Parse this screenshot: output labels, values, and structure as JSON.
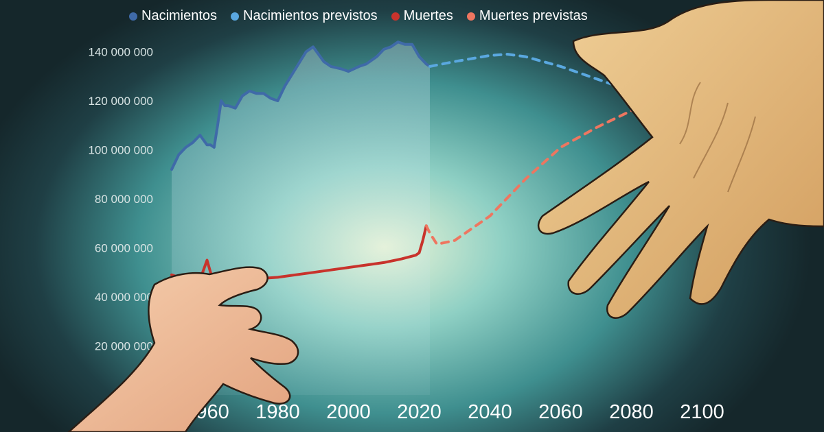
{
  "chart_data": {
    "type": "line",
    "title": "",
    "xlabel": "",
    "ylabel": "",
    "xlim": [
      1950,
      2100
    ],
    "ylim": [
      0,
      150000000
    ],
    "y_ticks": [
      {
        "value": 20000000,
        "label": "20 000 000"
      },
      {
        "value": 40000000,
        "label": "40 000 000"
      },
      {
        "value": 60000000,
        "label": "60 000 000"
      },
      {
        "value": 80000000,
        "label": "80 000 000"
      },
      {
        "value": 100000000,
        "label": "100 000 000"
      },
      {
        "value": 120000000,
        "label": "120 000 000"
      },
      {
        "value": 140000000,
        "label": "140 000 000"
      }
    ],
    "x_ticks": [
      {
        "value": 1960,
        "label": "1960"
      },
      {
        "value": 1980,
        "label": "1980"
      },
      {
        "value": 2000,
        "label": "2000"
      },
      {
        "value": 2020,
        "label": "2020"
      },
      {
        "value": 2040,
        "label": "2040"
      },
      {
        "value": 2060,
        "label": "2060"
      },
      {
        "value": 2080,
        "label": "2080"
      },
      {
        "value": 2100,
        "label": "2100"
      }
    ],
    "legend_position": "top",
    "grid": false,
    "series": [
      {
        "name": "Nacimientos",
        "color": "#3f6aa8",
        "style": "solid",
        "fill_below": true,
        "x": [
          1950,
          1952,
          1954,
          1956,
          1958,
          1960,
          1961,
          1962,
          1963,
          1964,
          1965,
          1966,
          1968,
          1970,
          1972,
          1974,
          1976,
          1978,
          1980,
          1982,
          1985,
          1988,
          1990,
          1993,
          1995,
          1998,
          2000,
          2003,
          2005,
          2008,
          2010,
          2012,
          2014,
          2016,
          2018,
          2020,
          2022,
          2023
        ],
        "y": [
          92000000,
          98000000,
          101000000,
          103000000,
          106000000,
          102000000,
          102000000,
          101000000,
          110000000,
          120000000,
          118000000,
          118000000,
          117000000,
          122000000,
          124000000,
          123000000,
          123000000,
          121000000,
          120000000,
          126000000,
          133000000,
          140000000,
          142000000,
          136000000,
          134000000,
          133000000,
          132000000,
          134000000,
          135000000,
          138000000,
          141000000,
          142000000,
          144000000,
          143000000,
          143000000,
          138000000,
          135000000,
          134000000
        ]
      },
      {
        "name": "Nacimientos previstos",
        "color": "#5aa8e0",
        "style": "dashed",
        "x": [
          2023,
          2030,
          2040,
          2045,
          2050,
          2060,
          2070,
          2080,
          2090,
          2100
        ],
        "y": [
          134000000,
          136000000,
          138500000,
          139000000,
          138000000,
          134000000,
          129000000,
          124000000,
          118000000,
          113000000
        ]
      },
      {
        "name": "Muertes",
        "color": "#c8332c",
        "style": "solid",
        "x": [
          1950,
          1952,
          1954,
          1956,
          1958,
          1959,
          1960,
          1961,
          1962,
          1965,
          1968,
          1970,
          1975,
          1980,
          1985,
          1990,
          1995,
          2000,
          2005,
          2010,
          2015,
          2019,
          2020,
          2021,
          2022
        ],
        "y": [
          49000000,
          48000000,
          47000000,
          48000000,
          47000000,
          51000000,
          55000000,
          50000000,
          47000000,
          48000000,
          47000000,
          47000000,
          47500000,
          48000000,
          49000000,
          50000000,
          51000000,
          52000000,
          53000000,
          54000000,
          55500000,
          57000000,
          58000000,
          63000000,
          69000000
        ]
      },
      {
        "name": "Muertes previstas",
        "color": "#ee7660",
        "style": "dashed",
        "x": [
          2022,
          2023,
          2025,
          2030,
          2040,
          2050,
          2060,
          2070,
          2080,
          2090,
          2100
        ],
        "y": [
          69000000,
          66000000,
          61500000,
          63000000,
          73000000,
          88000000,
          101000000,
          109000000,
          116000000,
          121000000,
          124000000
        ]
      }
    ]
  }
}
